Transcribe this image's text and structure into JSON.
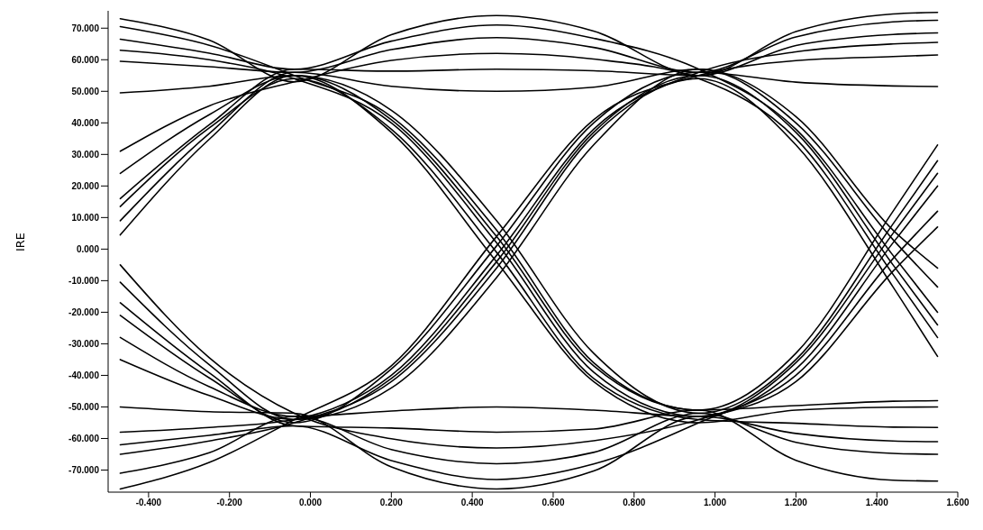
{
  "chart_data": {
    "type": "line",
    "ylabel": "IRE",
    "x": [
      -0.47,
      -0.25,
      -0.04,
      0.2,
      0.46,
      0.7,
      0.96,
      1.2,
      1.44,
      1.55
    ],
    "xlim": [
      -0.5,
      1.6
    ],
    "xticks": [
      {
        "value": -0.4,
        "label": "-0.400"
      },
      {
        "value": -0.2,
        "label": "-0.200"
      },
      {
        "value": 0,
        "label": "0.000"
      },
      {
        "value": 0.2,
        "label": "0.200"
      },
      {
        "value": 0.4,
        "label": "0.400"
      },
      {
        "value": 0.6,
        "label": "0.600"
      },
      {
        "value": 0.8,
        "label": "0.800"
      },
      {
        "value": 1,
        "label": "1.000"
      },
      {
        "value": 1.2,
        "label": "1.200"
      },
      {
        "value": 1.4,
        "label": "1.400"
      },
      {
        "value": 1.6,
        "label": "1.600"
      }
    ],
    "ylim": [
      -77,
      75.5
    ],
    "yticks": [
      {
        "value": -70,
        "label": "-70.000"
      },
      {
        "value": -60,
        "label": "-60.000"
      },
      {
        "value": -50,
        "label": "-50.000"
      },
      {
        "value": -40,
        "label": "-40.000"
      },
      {
        "value": -30,
        "label": "-30.000"
      },
      {
        "value": -20,
        "label": "-20.000"
      },
      {
        "value": -10,
        "label": "-10.000"
      },
      {
        "value": 0,
        "label": "0.000"
      },
      {
        "value": 10,
        "label": "10.000"
      },
      {
        "value": 20,
        "label": "20.000"
      },
      {
        "value": 30,
        "label": "30.000"
      },
      {
        "value": 40,
        "label": "40.000"
      },
      {
        "value": 50,
        "label": "50.000"
      },
      {
        "value": 60,
        "label": "60.000"
      },
      {
        "value": 70,
        "label": "70.000"
      }
    ],
    "marker": "none",
    "line_style": "solid",
    "grid": false,
    "legend": false,
    "series": [
      {
        "color": "#000000",
        "values": [
          73,
          66.2,
          53,
          67.9,
          74,
          69.1,
          55,
          68.9,
          74.5,
          75
        ]
      },
      {
        "color": "#000000",
        "values": [
          70.5,
          64.6,
          55,
          42,
          6,
          -36,
          -51,
          -49.6,
          -48.2,
          -48
        ]
      },
      {
        "color": "#000000",
        "values": [
          66.5,
          62.1,
          57,
          65.9,
          71,
          66.8,
          57,
          38,
          -2,
          -20
        ]
      },
      {
        "color": "#000000",
        "values": [
          63,
          60,
          54,
          40,
          2,
          -39,
          -53,
          -38,
          2,
          20
        ]
      },
      {
        "color": "#000000",
        "values": [
          59.5,
          57.8,
          56,
          63.2,
          67,
          63.9,
          56,
          67.2,
          72,
          72.5
        ]
      },
      {
        "color": "#000000",
        "values": [
          49.5,
          51.6,
          55,
          37,
          -4,
          -42,
          -55,
          -51,
          -50.1,
          -50
        ]
      },
      {
        "color": "#000000",
        "values": [
          31,
          45.4,
          53,
          59.8,
          62,
          60.2,
          54,
          35,
          -8,
          -28
        ]
      },
      {
        "color": "#000000",
        "values": [
          24,
          42.6,
          55,
          44,
          9,
          -33,
          -52,
          -35,
          8,
          28
        ]
      },
      {
        "color": "#000000",
        "values": [
          16,
          39.4,
          57,
          56.4,
          57,
          56.5,
          55,
          64.5,
          68,
          68.5
        ]
      },
      {
        "color": "#000000",
        "values": [
          13.5,
          38.4,
          54,
          38,
          -1,
          -41,
          -54,
          -55.2,
          -56.4,
          -56.5
        ]
      },
      {
        "color": "#000000",
        "values": [
          9,
          36.6,
          56,
          51.6,
          50,
          51.3,
          57,
          40,
          3,
          -12
        ]
      },
      {
        "color": "#000000",
        "values": [
          4.5,
          34.8,
          55,
          41,
          4,
          -37,
          -51,
          -33,
          12,
          33
        ]
      },
      {
        "color": "#000000",
        "values": [
          -50,
          -51.5,
          -52,
          -69,
          -76,
          -70.3,
          -53,
          -58.4,
          -60.8,
          -61
        ]
      },
      {
        "color": "#000000",
        "values": [
          -58,
          -56.5,
          -54,
          -40,
          -2,
          38,
          56,
          62.5,
          65,
          65.5
        ]
      },
      {
        "color": "#000000",
        "values": [
          -62,
          -59,
          -56,
          -67,
          -73,
          -68.1,
          -55,
          -40,
          -3,
          12
        ]
      },
      {
        "color": "#000000",
        "values": [
          -65,
          -60.8,
          -55,
          -42,
          -6,
          36,
          54,
          33,
          -12,
          -34
        ]
      },
      {
        "color": "#000000",
        "values": [
          -71,
          -64.5,
          -53,
          -63.5,
          -68,
          -64.4,
          -52,
          -61.2,
          -64.7,
          -65
        ]
      },
      {
        "color": "#000000",
        "values": [
          -76,
          -67.6,
          -54,
          -37,
          4,
          41,
          55,
          59.7,
          61,
          61.5
        ]
      },
      {
        "color": "#000000",
        "values": [
          -5,
          -34.4,
          -52,
          -60.1,
          -63,
          -60.7,
          -54,
          -42,
          -7,
          7
        ]
      },
      {
        "color": "#000000",
        "values": [
          -10.5,
          -36.6,
          -54,
          -44,
          -9,
          33,
          57,
          42,
          6,
          -6
        ]
      },
      {
        "color": "#000000",
        "values": [
          -17,
          -39.2,
          -56,
          -56.7,
          -58,
          -57,
          -51,
          -66.9,
          -73.2,
          -73.5
        ]
      },
      {
        "color": "#000000",
        "values": [
          -21,
          -40.8,
          -55,
          -38,
          1,
          40,
          56,
          52.9,
          51.7,
          51.5
        ]
      },
      {
        "color": "#000000",
        "values": [
          -28,
          -43.6,
          -53,
          -51.3,
          -50,
          -51,
          -53,
          -36,
          5,
          24
        ]
      },
      {
        "color": "#000000",
        "values": [
          -35,
          -46.4,
          -54,
          -41,
          -4,
          37,
          55,
          37,
          -5,
          -24
        ]
      }
    ]
  }
}
